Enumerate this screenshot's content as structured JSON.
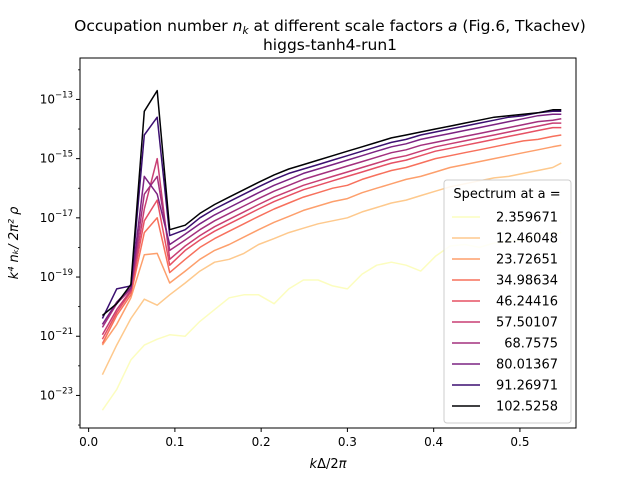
{
  "chart_data": {
    "type": "line",
    "title": {
      "line1_prefix": "Occupation number ",
      "line1_var": "n",
      "line1_sub": "k",
      "line1_mid": " at different scale factors ",
      "line1_var2": "a",
      "line1_suffix": " (Fig.6, Tkachev)",
      "line2": "higgs-tanh4-run1"
    },
    "xlabel": {
      "var": "k",
      "delta": "Δ",
      "slash": "/2",
      "pi": "π"
    },
    "ylabel": "k⁴ nₖ/ 2π² ρ",
    "xlim": [
      -0.01,
      0.565
    ],
    "ylim_log10": [
      -24.1,
      -11.6
    ],
    "y_scale": "log",
    "xticks": [
      {
        "value": 0.0,
        "label": "0.0"
      },
      {
        "value": 0.1,
        "label": "0.1"
      },
      {
        "value": 0.2,
        "label": "0.2"
      },
      {
        "value": 0.3,
        "label": "0.3"
      },
      {
        "value": 0.4,
        "label": "0.4"
      },
      {
        "value": 0.5,
        "label": "0.5"
      }
    ],
    "yticks": [
      {
        "exp": -23,
        "label": "10",
        "label_exp": "−23"
      },
      {
        "exp": -21,
        "label": "10",
        "label_exp": "−21"
      },
      {
        "exp": -19,
        "label": "10",
        "label_exp": "−19"
      },
      {
        "exp": -17,
        "label": "10",
        "label_exp": "−17"
      },
      {
        "exp": -15,
        "label": "10",
        "label_exp": "−15"
      },
      {
        "exp": -13,
        "label": "10",
        "label_exp": "−13"
      }
    ],
    "legend": {
      "title": "Spectrum at a =",
      "placement": "lower-right"
    },
    "x": [
      0.016,
      0.0325,
      0.049,
      0.0645,
      0.0795,
      0.094,
      0.112,
      0.129,
      0.146,
      0.163,
      0.18,
      0.197,
      0.215,
      0.232,
      0.249,
      0.266,
      0.283,
      0.3,
      0.317,
      0.334,
      0.351,
      0.368,
      0.385,
      0.402,
      0.419,
      0.436,
      0.453,
      0.47,
      0.487,
      0.504,
      0.521,
      0.538,
      0.548
    ],
    "series": [
      {
        "name": "2.359671",
        "color": "#fcfdbf",
        "values_log10": [
          -23.5,
          -22.8,
          -21.8,
          -21.3,
          -21.1,
          -20.95,
          -21.0,
          -20.5,
          -20.1,
          -19.7,
          -19.6,
          -19.6,
          -19.9,
          -19.4,
          -19.1,
          -19.1,
          -19.3,
          -19.4,
          -18.9,
          -18.6,
          -18.5,
          -18.6,
          -18.8,
          -18.3,
          -17.95,
          -17.9,
          -18.0,
          -17.85,
          -17.8,
          -17.75,
          -17.6,
          -17.5,
          -17.5
        ]
      },
      {
        "name": "12.46048",
        "color": "#fec98d",
        "values_log10": [
          -22.3,
          -21.3,
          -20.4,
          -19.75,
          -19.95,
          -19.6,
          -19.2,
          -18.8,
          -18.5,
          -18.4,
          -18.2,
          -17.9,
          -17.7,
          -17.5,
          -17.35,
          -17.2,
          -17.1,
          -17.0,
          -16.8,
          -16.65,
          -16.5,
          -16.4,
          -16.25,
          -16.1,
          -15.95,
          -15.85,
          -15.75,
          -15.65,
          -15.6,
          -15.5,
          -15.4,
          -15.3,
          -15.15
        ]
      },
      {
        "name": "23.72651",
        "color": "#fd9f6c",
        "values_log10": [
          -21.3,
          -20.6,
          -19.7,
          -18.25,
          -18.2,
          -19.2,
          -18.8,
          -18.4,
          -18.1,
          -17.9,
          -17.65,
          -17.4,
          -17.15,
          -16.95,
          -16.75,
          -16.6,
          -16.45,
          -16.35,
          -16.15,
          -16.0,
          -15.85,
          -15.7,
          -15.6,
          -15.45,
          -15.3,
          -15.2,
          -15.1,
          -15.0,
          -14.9,
          -14.8,
          -14.7,
          -14.6,
          -14.55
        ]
      },
      {
        "name": "34.98634",
        "color": "#f7705c",
        "values_log10": [
          -21.25,
          -20.3,
          -19.6,
          -17.5,
          -17.0,
          -18.85,
          -18.4,
          -18.0,
          -17.7,
          -17.45,
          -17.2,
          -16.95,
          -16.7,
          -16.5,
          -16.3,
          -16.15,
          -16.0,
          -15.9,
          -15.7,
          -15.55,
          -15.4,
          -15.3,
          -15.15,
          -15.0,
          -14.9,
          -14.8,
          -14.7,
          -14.6,
          -14.5,
          -14.4,
          -14.35,
          -14.25,
          -14.2
        ]
      },
      {
        "name": "46.24416",
        "color": "#e65164",
        "values_log10": [
          -21.1,
          -20.2,
          -19.5,
          -17.1,
          -16.4,
          -18.6,
          -18.1,
          -17.75,
          -17.45,
          -17.2,
          -16.95,
          -16.7,
          -16.45,
          -16.25,
          -16.05,
          -15.9,
          -15.75,
          -15.6,
          -15.45,
          -15.3,
          -15.15,
          -15.05,
          -14.9,
          -14.75,
          -14.65,
          -14.55,
          -14.45,
          -14.35,
          -14.25,
          -14.15,
          -14.05,
          -13.95,
          -13.95
        ]
      },
      {
        "name": "57.50107",
        "color": "#c83e73",
        "values_log10": [
          -20.95,
          -20.1,
          -19.45,
          -16.7,
          -15.0,
          -18.4,
          -17.95,
          -17.6,
          -17.3,
          -17.05,
          -16.8,
          -16.55,
          -16.3,
          -16.1,
          -15.9,
          -15.75,
          -15.6,
          -15.45,
          -15.3,
          -15.15,
          -15.0,
          -14.9,
          -14.75,
          -14.6,
          -14.5,
          -14.4,
          -14.3,
          -14.2,
          -14.1,
          -14.0,
          -13.9,
          -13.8,
          -13.8
        ]
      },
      {
        "name": "68.7575",
        "color": "#a3307e",
        "values_log10": [
          -20.7,
          -19.9,
          -19.4,
          -16.2,
          -15.6,
          -18.1,
          -17.75,
          -17.4,
          -17.1,
          -16.85,
          -16.6,
          -16.35,
          -16.1,
          -15.9,
          -15.7,
          -15.55,
          -15.4,
          -15.25,
          -15.1,
          -14.95,
          -14.8,
          -14.7,
          -14.55,
          -14.45,
          -14.35,
          -14.25,
          -14.15,
          -14.05,
          -13.95,
          -13.85,
          -13.75,
          -13.7,
          -13.65
        ]
      },
      {
        "name": "80.01367",
        "color": "#7c2382",
        "values_log10": [
          -20.6,
          -19.85,
          -19.35,
          -15.6,
          -16.2,
          -17.9,
          -17.55,
          -17.2,
          -16.9,
          -16.65,
          -16.4,
          -16.15,
          -15.9,
          -15.7,
          -15.5,
          -15.35,
          -15.2,
          -15.05,
          -14.9,
          -14.75,
          -14.6,
          -14.5,
          -14.35,
          -14.25,
          -14.15,
          -14.05,
          -13.95,
          -13.85,
          -13.75,
          -13.65,
          -13.55,
          -13.5,
          -13.5
        ]
      },
      {
        "name": "91.26971",
        "color": "#3b0f70",
        "values_log10": [
          -20.4,
          -19.4,
          -19.3,
          -14.2,
          -13.6,
          -17.6,
          -17.4,
          -17.0,
          -16.7,
          -16.45,
          -16.2,
          -15.95,
          -15.7,
          -15.5,
          -15.35,
          -15.2,
          -15.05,
          -14.9,
          -14.75,
          -14.6,
          -14.45,
          -14.35,
          -14.2,
          -14.1,
          -14.0,
          -13.9,
          -13.8,
          -13.7,
          -13.6,
          -13.55,
          -13.45,
          -13.4,
          -13.4
        ]
      },
      {
        "name": "102.5258",
        "color": "#000004",
        "values_log10": [
          -20.3,
          -19.9,
          -19.25,
          -13.4,
          -12.7,
          -17.4,
          -17.25,
          -16.85,
          -16.55,
          -16.3,
          -16.05,
          -15.8,
          -15.55,
          -15.35,
          -15.2,
          -15.05,
          -14.9,
          -14.75,
          -14.6,
          -14.45,
          -14.3,
          -14.2,
          -14.1,
          -14.0,
          -13.9,
          -13.8,
          -13.7,
          -13.6,
          -13.55,
          -13.5,
          -13.45,
          -13.35,
          -13.35
        ]
      }
    ]
  }
}
